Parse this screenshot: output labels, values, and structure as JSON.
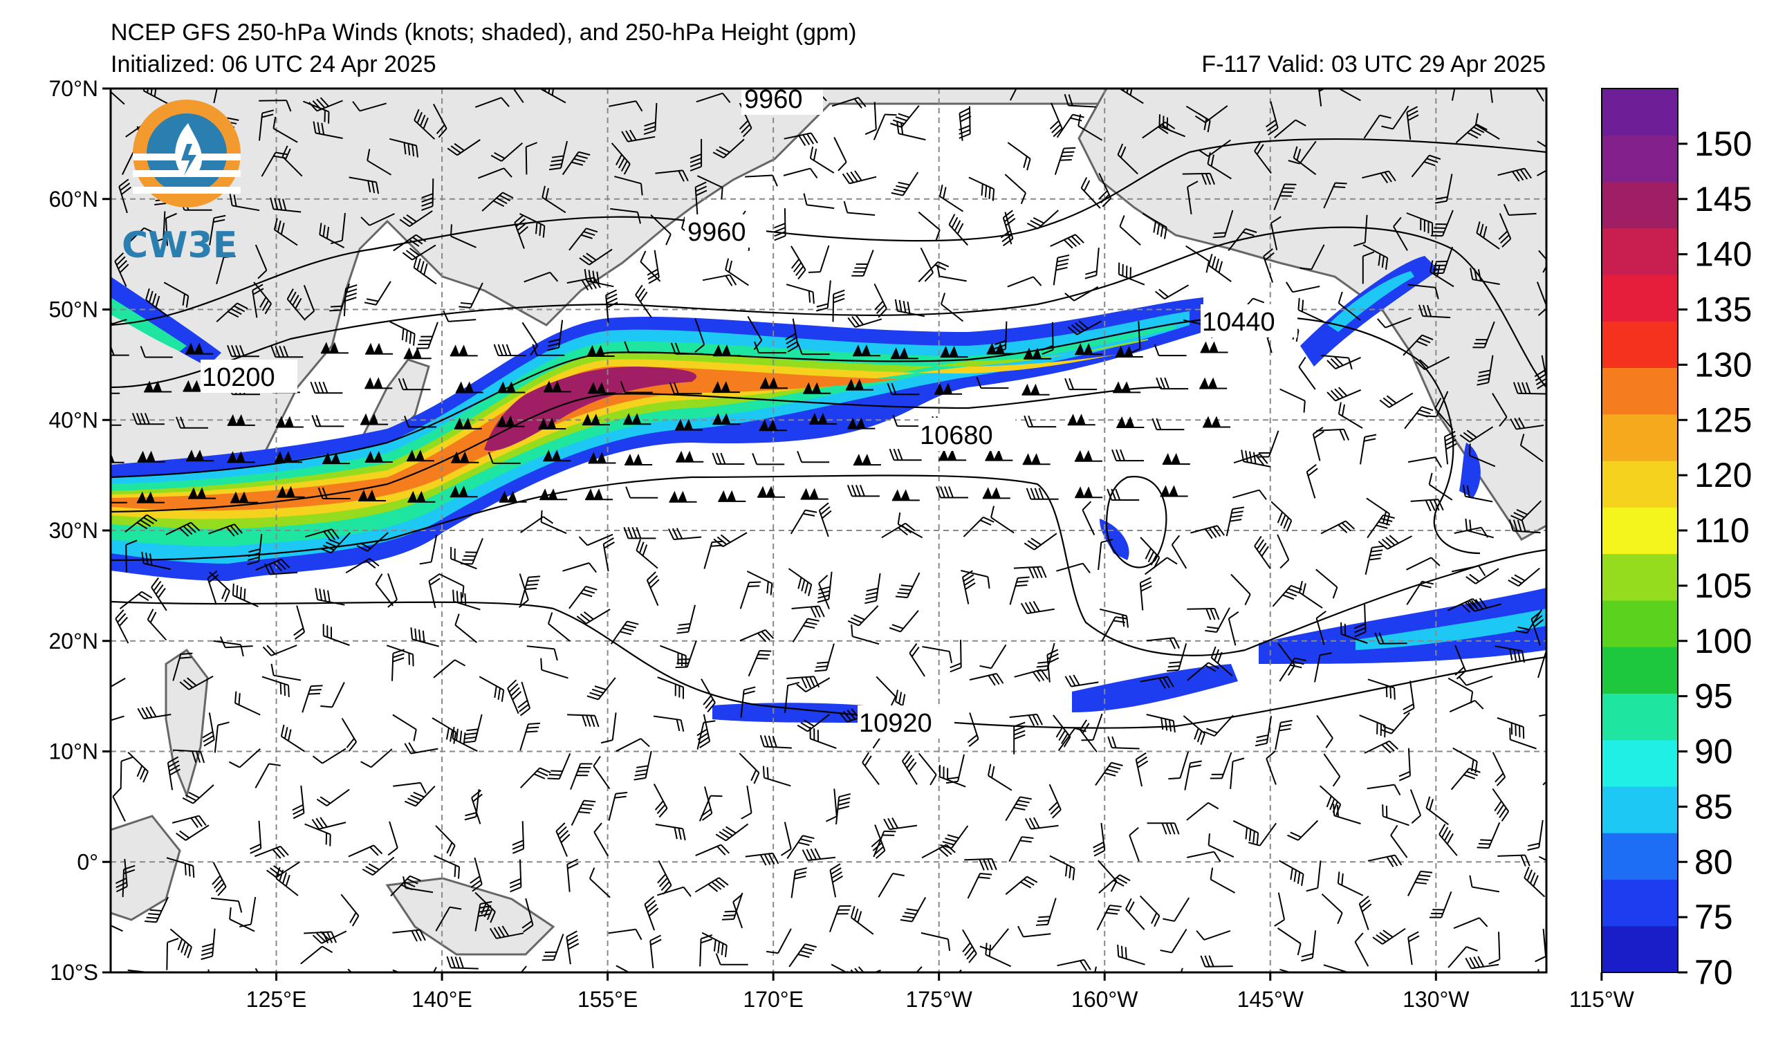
{
  "header": {
    "title": "NCEP GFS 250-hPa Winds (knots; shaded), and 250-hPa Height (gpm)",
    "initialized": "Initialized: 06 UTC 24 Apr 2025",
    "valid": "F-117  Valid: 03 UTC 29 Apr 2025"
  },
  "logo": {
    "text": "CW3E",
    "colors": {
      "orange": "#f29a2e",
      "blue": "#2a7fb0"
    }
  },
  "map": {
    "lat_labels": [
      "70°N",
      "60°N",
      "50°N",
      "40°N",
      "30°N",
      "20°N",
      "10°N",
      "0°",
      "10°S"
    ],
    "lon_labels": [
      "125°E",
      "140°E",
      "155°E",
      "170°E",
      "175°W",
      "160°W",
      "145°W",
      "130°W",
      "115°W"
    ],
    "lat_range": [
      -10,
      70
    ],
    "lon_range_deg_east": [
      115,
      245
    ],
    "gridlines": "dashed",
    "land_color": "#e6e6e6",
    "coast_color": "#666666"
  },
  "contours": {
    "unit": "gpm",
    "labels": [
      "9960",
      "9960",
      "10200",
      "10440",
      "10680",
      "10920"
    ]
  },
  "colorbar": {
    "unit": "knots",
    "ticks": [
      "70",
      "75",
      "80",
      "85",
      "90",
      "95",
      "100",
      "105",
      "110",
      "120",
      "125",
      "130",
      "135",
      "140",
      "145",
      "150"
    ],
    "colors": [
      "#1a1ec8",
      "#1e3cf0",
      "#1e6ef5",
      "#1ec8f5",
      "#1ef0e6",
      "#1ee6a0",
      "#1ec83c",
      "#5ad21e",
      "#96dc1e",
      "#f5f51e",
      "#f5d21e",
      "#f5aa1e",
      "#f57d1e",
      "#f5321e",
      "#e61e3c",
      "#c81e50",
      "#a01e64",
      "#82208c",
      "#6e1e96"
    ]
  }
}
